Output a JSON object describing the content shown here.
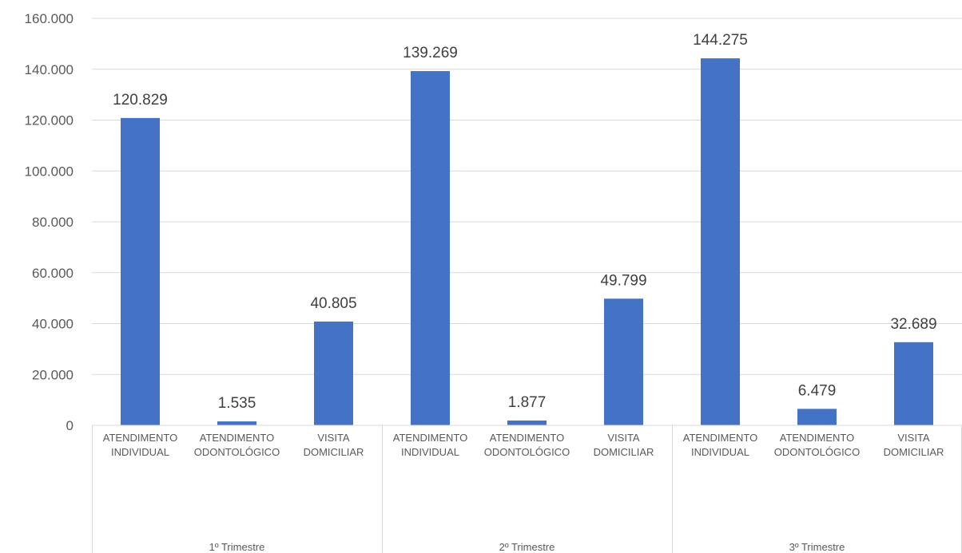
{
  "chart_data": {
    "type": "bar",
    "groups": [
      {
        "name": "1º Trimestre",
        "categories": [
          {
            "line1": "ATENDIMENTO",
            "line2": "INDIVIDUAL",
            "value": 120829,
            "label": "120.829"
          },
          {
            "line1": "ATENDIMENTO",
            "line2": "ODONTOLÓGICO",
            "value": 1535,
            "label": "1.535"
          },
          {
            "line1": "VISITA",
            "line2": "DOMICILIAR",
            "value": 40805,
            "label": "40.805"
          }
        ]
      },
      {
        "name": "2º Trimestre",
        "categories": [
          {
            "line1": "ATENDIMENTO",
            "line2": "INDIVIDUAL",
            "value": 139269,
            "label": "139.269"
          },
          {
            "line1": "ATENDIMENTO",
            "line2": "ODONTOLÓGICO",
            "value": 1877,
            "label": "1.877"
          },
          {
            "line1": "VISITA",
            "line2": "DOMICILIAR",
            "value": 49799,
            "label": "49.799"
          }
        ]
      },
      {
        "name": "3º Trimestre",
        "categories": [
          {
            "line1": "ATENDIMENTO",
            "line2": "INDIVIDUAL",
            "value": 144275,
            "label": "144.275"
          },
          {
            "line1": "ATENDIMENTO",
            "line2": "ODONTOLÓGICO",
            "value": 6479,
            "label": "6.479"
          },
          {
            "line1": "VISITA",
            "line2": "DOMICILIAR",
            "value": 32689,
            "label": "32.689"
          }
        ]
      }
    ],
    "y_ticks": [
      {
        "value": 0,
        "label": "0"
      },
      {
        "value": 20000,
        "label": "20.000"
      },
      {
        "value": 40000,
        "label": "40.000"
      },
      {
        "value": 60000,
        "label": "60.000"
      },
      {
        "value": 80000,
        "label": "80.000"
      },
      {
        "value": 100000,
        "label": "100.000"
      },
      {
        "value": 120000,
        "label": "120.000"
      },
      {
        "value": 140000,
        "label": "140.000"
      },
      {
        "value": 160000,
        "label": "160.000"
      }
    ],
    "ylim": [
      0,
      160000
    ],
    "grid": true,
    "bar_color": "#4472C4"
  }
}
